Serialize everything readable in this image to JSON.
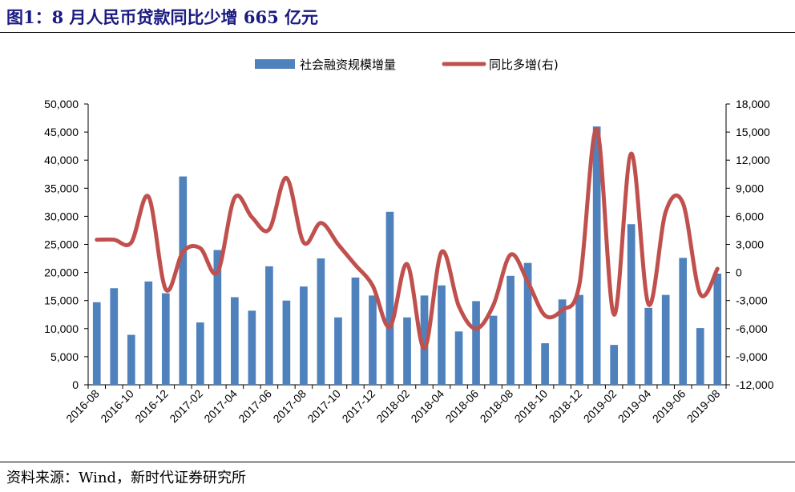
{
  "header": {
    "title": "图1：8 月人民币贷款同比少增 665 亿元"
  },
  "footer": {
    "source": "资料来源：Wind，新时代证券研究所"
  },
  "chart_data": {
    "type": "bar+line",
    "categories": [
      "2016-08",
      "2016-09",
      "2016-10",
      "2016-11",
      "2016-12",
      "2017-01",
      "2017-02",
      "2017-03",
      "2017-04",
      "2017-05",
      "2017-06",
      "2017-07",
      "2017-08",
      "2017-09",
      "2017-10",
      "2017-11",
      "2017-12",
      "2018-01",
      "2018-02",
      "2018-03",
      "2018-04",
      "2018-05",
      "2018-06",
      "2018-07",
      "2018-08",
      "2018-09",
      "2018-10",
      "2018-11",
      "2018-12",
      "2019-01",
      "2019-02",
      "2019-03",
      "2019-04",
      "2019-05",
      "2019-06",
      "2019-07",
      "2019-08"
    ],
    "x_tick_labels": [
      "2016-08",
      "2016-10",
      "2016-12",
      "2017-02",
      "2017-04",
      "2017-06",
      "2017-08",
      "2017-10",
      "2017-12",
      "2018-02",
      "2018-04",
      "2018-06",
      "2018-08",
      "2018-10",
      "2018-12",
      "2019-02",
      "2019-04",
      "2019-06",
      "2019-08"
    ],
    "series": [
      {
        "name": "社会融资规模增量",
        "type": "bar",
        "axis": "left",
        "color": "#4f81bd",
        "values": [
          14700,
          17200,
          8900,
          18400,
          16300,
          37100,
          11100,
          24000,
          15600,
          13200,
          21100,
          15000,
          17500,
          22500,
          12000,
          19100,
          15900,
          30800,
          12000,
          15900,
          17700,
          9500,
          14900,
          12300,
          19400,
          21700,
          7400,
          15200,
          16000,
          46000,
          7100,
          28600,
          13700,
          16000,
          22600,
          10100,
          19800
        ]
      },
      {
        "name": "同比多增(右)",
        "type": "line",
        "axis": "right",
        "color": "#c0504d",
        "values": [
          3500,
          3500,
          3200,
          8100,
          -1800,
          2200,
          2600,
          0,
          8000,
          5900,
          4600,
          10100,
          3200,
          5300,
          3000,
          800,
          -1400,
          -5800,
          900,
          -8100,
          2200,
          -3600,
          -6000,
          -3500,
          1900,
          -1000,
          -4600,
          -4000,
          -1200,
          15300,
          -4500,
          12700,
          -3400,
          6500,
          7400,
          -2300,
          400
        ]
      }
    ],
    "y_left": {
      "lim": [
        0,
        50000
      ],
      "ticks": [
        "0",
        "5,000",
        "10,000",
        "15,000",
        "20,000",
        "25,000",
        "30,000",
        "35,000",
        "40,000",
        "45,000",
        "50,000"
      ]
    },
    "y_right": {
      "lim": [
        -12000,
        18000
      ],
      "ticks": [
        "-12,000",
        "-9,000",
        "-6,000",
        "-3,000",
        "0",
        "3,000",
        "6,000",
        "9,000",
        "12,000",
        "15,000",
        "18,000"
      ]
    },
    "legend": "top-center",
    "grid": false
  }
}
